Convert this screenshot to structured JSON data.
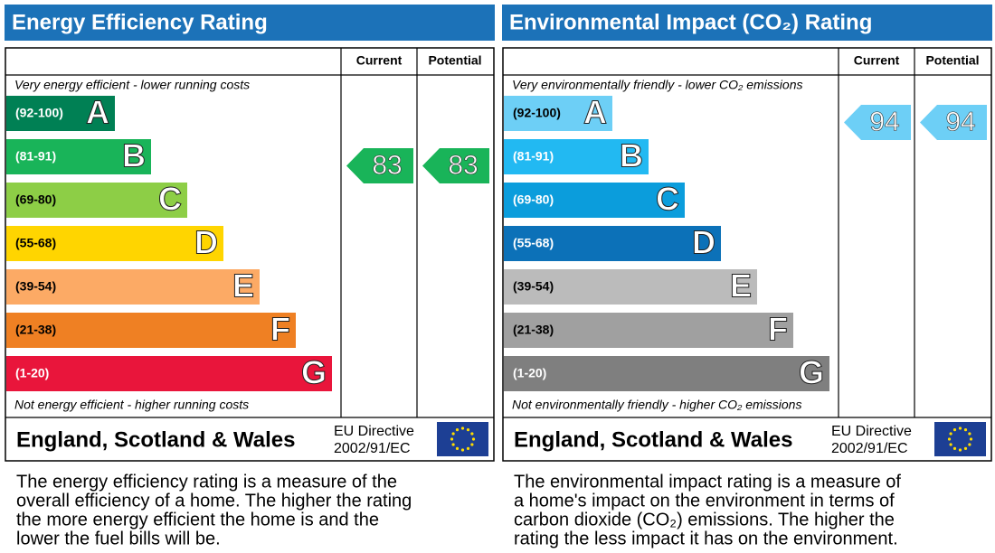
{
  "panels": [
    {
      "title": "Energy Efficiency Rating",
      "current_header": "Current",
      "potential_header": "Potential",
      "top_note": "Very energy efficient - lower running costs",
      "bottom_note": "Not energy efficient - higher running costs",
      "bands": [
        {
          "range": "(92-100)",
          "letter": "A",
          "color": "#008054"
        },
        {
          "range": "(81-91)",
          "letter": "B",
          "color": "#19b459"
        },
        {
          "range": "(69-80)",
          "letter": "C",
          "color": "#8dce46"
        },
        {
          "range": "(55-68)",
          "letter": "D",
          "color": "#ffd500"
        },
        {
          "range": "(39-54)",
          "letter": "E",
          "color": "#fcaa65"
        },
        {
          "range": "(21-38)",
          "letter": "F",
          "color": "#ef8023"
        },
        {
          "range": "(1-20)",
          "letter": "G",
          "color": "#e9153b"
        }
      ],
      "current": 83,
      "potential": 83,
      "region": "England, Scotland & Wales",
      "directive": [
        "EU Directive",
        "2002/91/EC"
      ],
      "description": [
        "The energy efficiency rating is a measure of the",
        "overall efficiency of a home. The higher the rating",
        "the more energy efficient the home is and the",
        "lower the fuel bills will be."
      ]
    },
    {
      "title": "Environmental Impact (CO₂) Rating",
      "current_header": "Current",
      "potential_header": "Potential",
      "top_note": "Very environmentally friendly - lower CO₂ emissions",
      "bottom_note": "Not environmentally friendly - higher CO₂ emissions",
      "bands": [
        {
          "range": "(92-100)",
          "letter": "A",
          "color": "#6dcff6"
        },
        {
          "range": "(81-91)",
          "letter": "B",
          "color": "#22b9f2"
        },
        {
          "range": "(69-80)",
          "letter": "C",
          "color": "#0b9ddc"
        },
        {
          "range": "(55-68)",
          "letter": "D",
          "color": "#0c71b8"
        },
        {
          "range": "(39-54)",
          "letter": "E",
          "color": "#bbbbbb"
        },
        {
          "range": "(21-38)",
          "letter": "F",
          "color": "#a0a0a0"
        },
        {
          "range": "(1-20)",
          "letter": "G",
          "color": "#7f7f7f"
        }
      ],
      "current": 94,
      "potential": 94,
      "region": "England, Scotland & Wales",
      "directive": [
        "EU Directive",
        "2002/91/EC"
      ],
      "description": [
        "The environmental impact rating is a measure of",
        "a home's impact on the environment in terms of",
        "carbon dioxide (CO₂) emissions. The higher the",
        "rating the less impact it has on the environment."
      ]
    }
  ]
}
